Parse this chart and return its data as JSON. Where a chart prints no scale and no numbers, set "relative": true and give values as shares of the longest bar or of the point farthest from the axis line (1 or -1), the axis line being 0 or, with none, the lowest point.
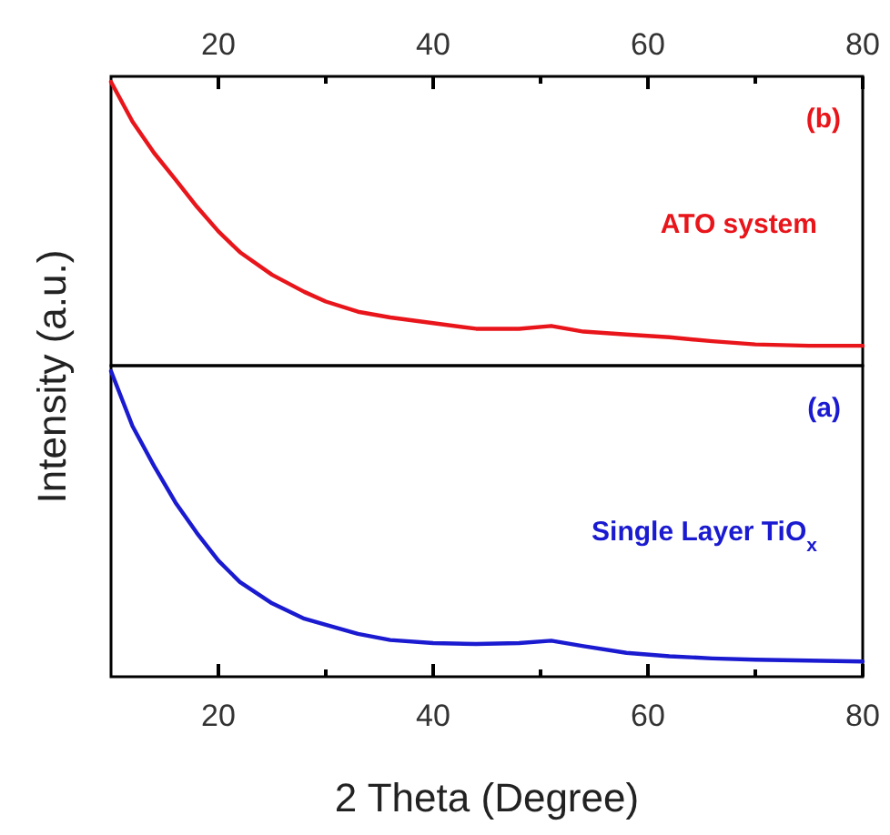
{
  "chart_data": [
    {
      "type": "line",
      "relative": true,
      "xlim": [
        10,
        80
      ],
      "xticks": [
        20,
        {
          "value": 30,
          "label": null
        },
        40,
        {
          "value": 50,
          "label": null
        },
        60,
        {
          "value": 70,
          "label": null
        },
        80
      ],
      "tick_labels": "x",
      "ylabel": "Intensity (a.u.)",
      "annotations": [
        "(b)"
      ],
      "x": [
        10,
        12,
        14,
        16,
        18,
        20,
        22,
        25,
        28,
        30,
        33,
        36,
        40,
        44,
        48,
        51,
        54,
        58,
        62,
        66,
        70,
        75,
        80
      ],
      "series": [
        {
          "name": "ATO system",
          "color": "#e8151b",
          "values": [
            1,
            0.86,
            0.75,
            0.656,
            0.56,
            0.473,
            0.4,
            0.32,
            0.26,
            0.226,
            0.19,
            0.17,
            0.15,
            0.13,
            0.13,
            0.14,
            0.12,
            0.11,
            0.1,
            0.086,
            0.075,
            0.07,
            0.07
          ]
        }
      ]
    },
    {
      "type": "line",
      "relative": true,
      "xlim": [
        10,
        80
      ],
      "xticks": [
        20,
        {
          "value": 30,
          "label": null
        },
        40,
        {
          "value": 50,
          "label": null
        },
        60,
        {
          "value": 70,
          "label": null
        },
        80
      ],
      "tick_labels": "x",
      "xlabel": "2 Theta (Degree)",
      "annotations": [
        "(a)"
      ],
      "x": [
        10,
        12,
        14,
        16,
        18,
        20,
        22,
        25,
        28,
        30,
        33,
        36,
        40,
        44,
        48,
        51,
        54,
        58,
        62,
        66,
        70,
        75,
        80
      ],
      "series": [
        {
          "name": "Single Layer TiO$_{x}$",
          "color": "#1a1ad0",
          "values": [
            1,
            0.82,
            0.69,
            0.57,
            0.47,
            0.38,
            0.31,
            0.24,
            0.19,
            0.17,
            0.14,
            0.12,
            0.11,
            0.107,
            0.11,
            0.118,
            0.1,
            0.078,
            0.067,
            0.06,
            0.056,
            0.053,
            0.05
          ]
        }
      ]
    }
  ]
}
